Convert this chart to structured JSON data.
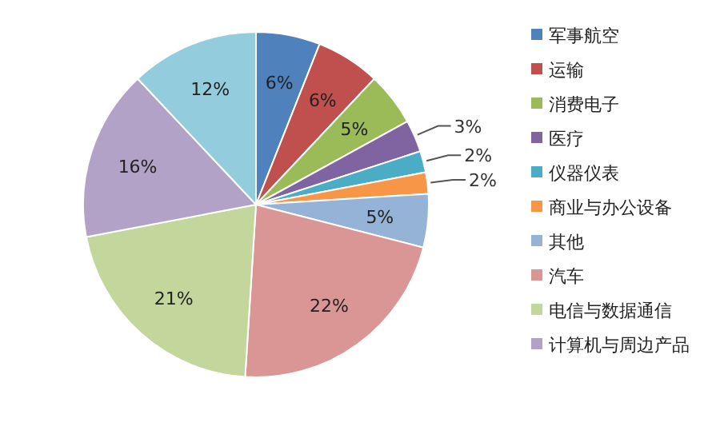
{
  "chart_data": {
    "type": "pie",
    "categories": [
      "军事航空",
      "运输",
      "消费电子",
      "医疗",
      "仪器仪表",
      "商业与办公设备",
      "其他",
      "汽车",
      "电信与数据通信",
      "计算机与周边产品",
      null
    ],
    "values": [
      6,
      6,
      5,
      3,
      2,
      2,
      5,
      22,
      21,
      16,
      12
    ],
    "value_labels": [
      "6%",
      "6%",
      "5%",
      "3%",
      "2%",
      "2%",
      "5%",
      "22%",
      "21%",
      "16%",
      "12%"
    ],
    "colors": [
      "#4f81bd",
      "#c0504d",
      "#9bbb59",
      "#8064a2",
      "#4bacc6",
      "#f79646",
      "#95b3d7",
      "#d99694",
      "#c3d69b",
      "#b3a2c7",
      "#93cddd"
    ],
    "legend": "right"
  }
}
